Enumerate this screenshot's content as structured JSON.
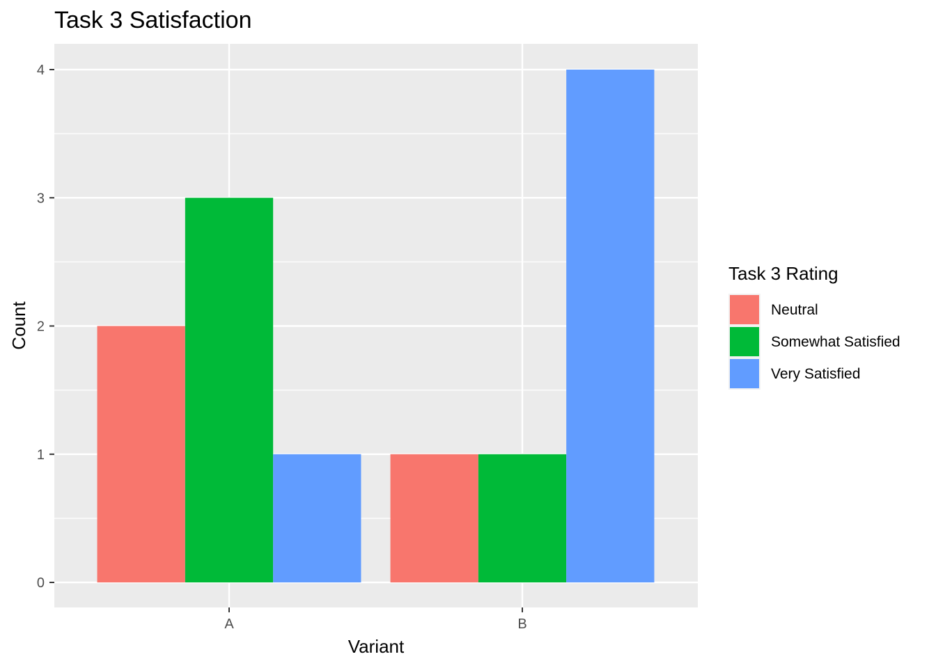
{
  "chart_data": {
    "type": "bar",
    "title": "Task 3 Satisfaction",
    "xlabel": "Variant",
    "ylabel": "Count",
    "categories": [
      "A",
      "B"
    ],
    "series": [
      {
        "name": "Neutral",
        "values": [
          2,
          1
        ],
        "color": "#F8766D"
      },
      {
        "name": "Somewhat Satisfied",
        "values": [
          3,
          1
        ],
        "color": "#00BA38"
      },
      {
        "name": "Very Satisfied",
        "values": [
          1,
          4
        ],
        "color": "#619CFF"
      }
    ],
    "ylim": [
      0,
      4
    ],
    "yticks": [
      0,
      1,
      2,
      3,
      4
    ],
    "legend": {
      "title": "Task 3 Rating",
      "position": "right"
    },
    "grid": true,
    "panel_color": "#EBEBEB",
    "grid_color": "#FFFFFF"
  }
}
